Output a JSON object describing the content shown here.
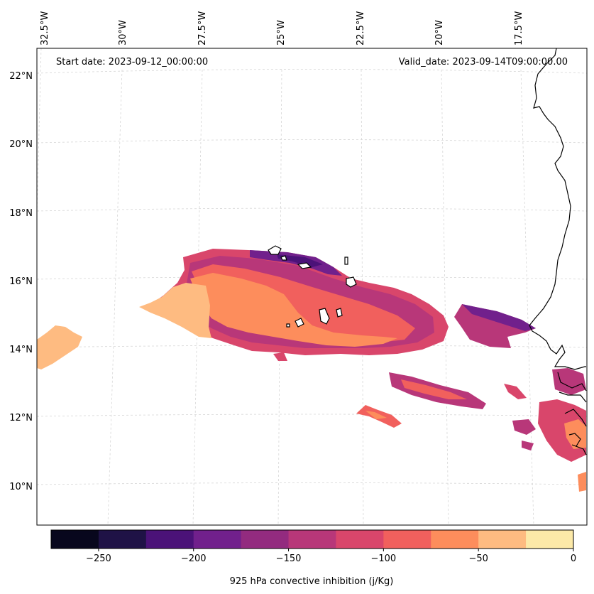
{
  "map": {
    "start_label": "Start date: 2023-09-12_00:00:00",
    "valid_label": "Valid_date: 2023-09-14T09:00:00.00",
    "lon_labels": [
      "32.5°W",
      "30°W",
      "27.5°W",
      "25°W",
      "22.5°W",
      "20°W",
      "17.5°W"
    ],
    "lat_labels": [
      "22°N",
      "20°N",
      "18°N",
      "16°N",
      "14°N",
      "12°N",
      "10°N"
    ],
    "coast_color": "#000000",
    "ocean_color": "#ffffff"
  },
  "colorbar": {
    "title": "925 hPa convective inhibition (j/Kg)",
    "levels": [
      -275,
      -250,
      -225,
      -200,
      -175,
      -150,
      -125,
      -100,
      -75,
      -50,
      -25,
      0
    ],
    "tick_labels": [
      "−250",
      "−200",
      "−150",
      "−100",
      "−50",
      "0"
    ],
    "colors": [
      "#08071d",
      "#1f1246",
      "#4b1278",
      "#71208c",
      "#932b7f",
      "#b83779",
      "#d9466b",
      "#f1605d",
      "#fd8d5c",
      "#febb81",
      "#fce9a8"
    ]
  }
}
